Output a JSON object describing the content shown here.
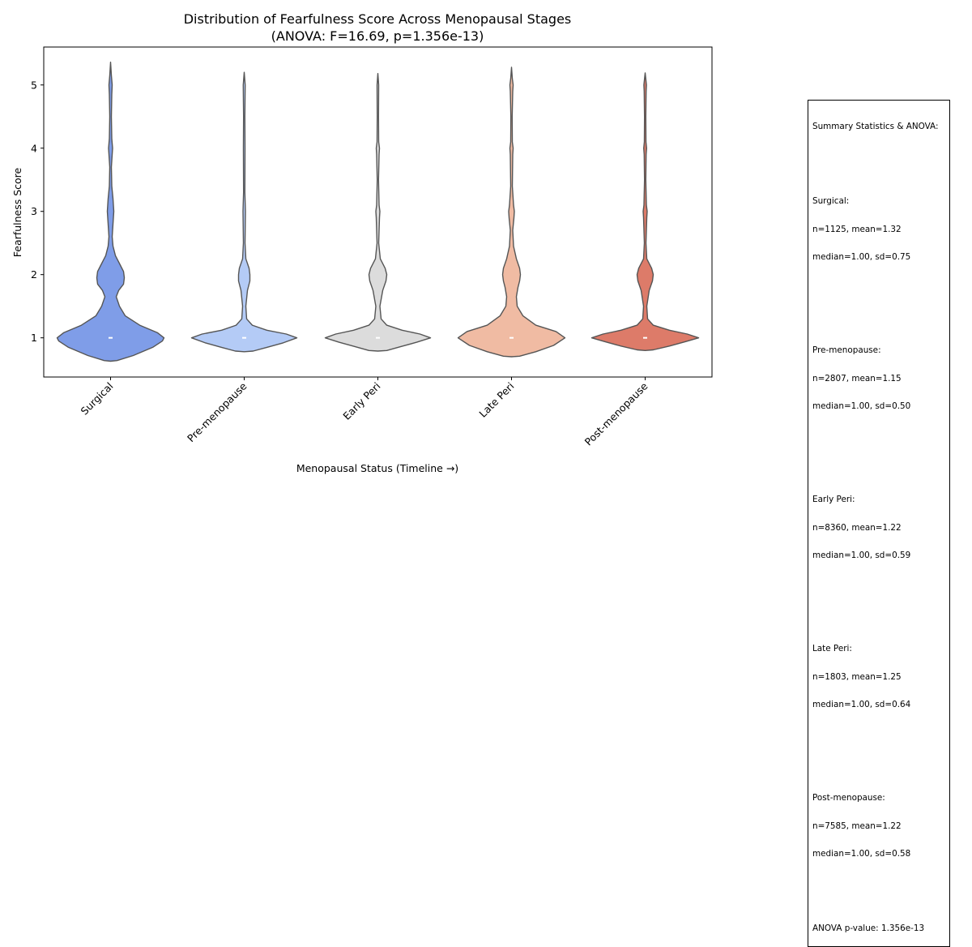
{
  "chart_data": {
    "type": "violin",
    "title": "Distribution of Fearfulness Score Across Menopausal Stages",
    "subtitle": "(ANOVA: F=16.69, p=1.356e-13)",
    "xlabel": "Menopausal Status (Timeline →)",
    "ylabel": "Fearfulness Score",
    "ylim": [
      0.38,
      5.6
    ],
    "yticks": [
      1,
      2,
      3,
      4,
      5
    ],
    "categories": [
      "Surgical",
      "Pre-menopause",
      "Early Peri",
      "Late Peri",
      "Post-menopause"
    ],
    "colors": [
      "#7f9de8",
      "#b4cbf6",
      "#dcdcdc",
      "#f0bba3",
      "#dd7b69"
    ],
    "edge_color": "#555555",
    "median_values": [
      1.0,
      1.0,
      1.0,
      1.0,
      1.0
    ],
    "x_tick_rotation_deg": 45,
    "legend": "none",
    "grid": false
  },
  "stats_box": {
    "header": "Summary Statistics & ANOVA:",
    "groups": [
      {
        "name": "Surgical:",
        "line1": "n=1125, mean=1.32",
        "line2": "median=1.00, sd=0.75"
      },
      {
        "name": "Pre-menopause:",
        "line1": "n=2807, mean=1.15",
        "line2": "median=1.00, sd=0.50"
      },
      {
        "name": "Early Peri:",
        "line1": "n=8360, mean=1.22",
        "line2": "median=1.00, sd=0.59"
      },
      {
        "name": "Late Peri:",
        "line1": "n=1803, mean=1.25",
        "line2": "median=1.00, sd=0.64"
      },
      {
        "name": "Post-menopause:",
        "line1": "n=7585, mean=1.22",
        "line2": "median=1.00, sd=0.58"
      }
    ],
    "footer": "ANOVA p-value: 1.356e-13"
  }
}
